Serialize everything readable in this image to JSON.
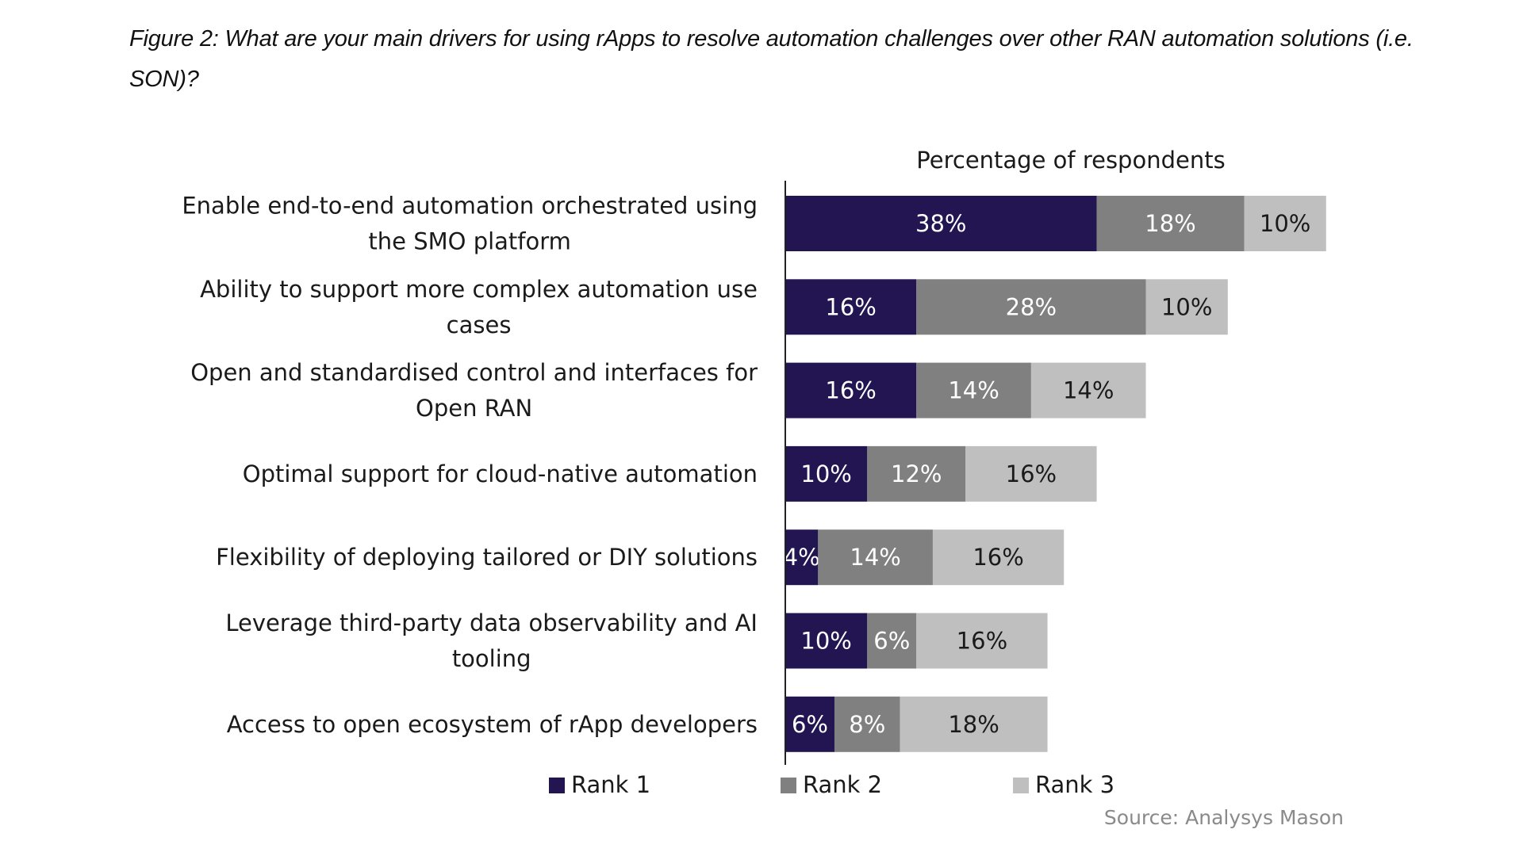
{
  "figure": {
    "title": "Figure 2: What are your main drivers for using rApps to resolve automation challenges over other RAN automation solutions (i.e. SON)?"
  },
  "chart_data": {
    "type": "bar",
    "orientation": "horizontal",
    "stacked": true,
    "title": "Figure 2: What are your main drivers for using rApps to resolve automation challenges over other RAN automation solutions (i.e. SON)?",
    "xlabel": "Percentage of respondents",
    "ylabel": "",
    "xlim": [
      0,
      70
    ],
    "unit": "%",
    "grid": false,
    "legend_position": "bottom",
    "source": "Source: Analysys Mason",
    "categories": [
      [
        "Enable end-to-end automation orchestrated using",
        "the SMO platform"
      ],
      [
        "Ability to support more complex automation use",
        "cases"
      ],
      [
        "Open and standardised control and interfaces for",
        "Open RAN"
      ],
      [
        "Optimal support for cloud-native automation"
      ],
      [
        "Flexibility of deploying tailored or DIY solutions"
      ],
      [
        "Leverage third-party data observability and AI",
        "tooling"
      ],
      [
        "Access to open ecosystem of rApp developers"
      ]
    ],
    "series": [
      {
        "name": "Rank 1",
        "color": "#221551",
        "label_color": "#ffffff",
        "values": [
          38,
          16,
          16,
          10,
          4,
          10,
          6
        ]
      },
      {
        "name": "Rank 2",
        "color": "#808080",
        "label_color": "#ffffff",
        "values": [
          18,
          28,
          14,
          12,
          14,
          6,
          8
        ]
      },
      {
        "name": "Rank 3",
        "color": "#bfbfbf",
        "label_color": "#1a1a1a",
        "values": [
          10,
          10,
          14,
          16,
          16,
          16,
          18
        ]
      }
    ]
  }
}
